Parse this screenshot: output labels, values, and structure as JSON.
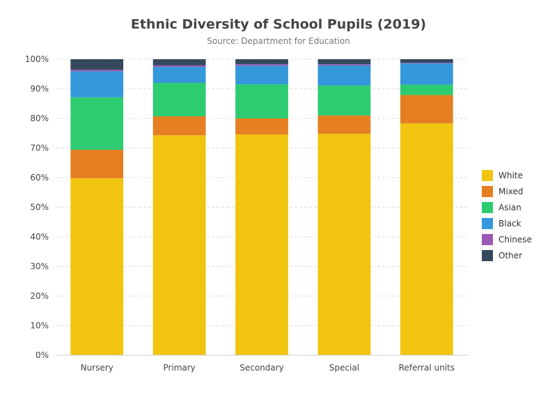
{
  "chart_data": {
    "type": "bar",
    "stacked": true,
    "title": "Ethnic Diversity of School Pupils (2019)",
    "subtitle": "Source: Department for Education",
    "xlabel": "",
    "ylabel": "",
    "categories": [
      "Nursery",
      "Primary",
      "Secondary",
      "Special",
      "Referral units"
    ],
    "series": [
      {
        "name": "White",
        "color": "#f1c40f",
        "values": [
          59.8,
          74.3,
          74.6,
          74.8,
          78.3
        ]
      },
      {
        "name": "Mixed",
        "color": "#e67e22",
        "values": [
          9.6,
          6.4,
          5.4,
          6.2,
          9.6
        ]
      },
      {
        "name": "Asian",
        "color": "#2ecc71",
        "values": [
          17.7,
          11.3,
          11.5,
          10.1,
          3.5
        ]
      },
      {
        "name": "Black",
        "color": "#3498db",
        "values": [
          8.8,
          5.4,
          6.3,
          6.8,
          7.2
        ]
      },
      {
        "name": "Chinese",
        "color": "#9b59b6",
        "values": [
          0.5,
          0.5,
          0.5,
          0.4,
          0.2
        ]
      },
      {
        "name": "Other",
        "color": "#34495e",
        "values": [
          3.6,
          2.1,
          1.7,
          1.7,
          1.2
        ]
      }
    ],
    "ylim": [
      0,
      100
    ],
    "yticks": [
      "0%",
      "10%",
      "20%",
      "30%",
      "40%",
      "50%",
      "60%",
      "70%",
      "80%",
      "90%",
      "100%"
    ],
    "grid": true,
    "legend_position": "right"
  }
}
